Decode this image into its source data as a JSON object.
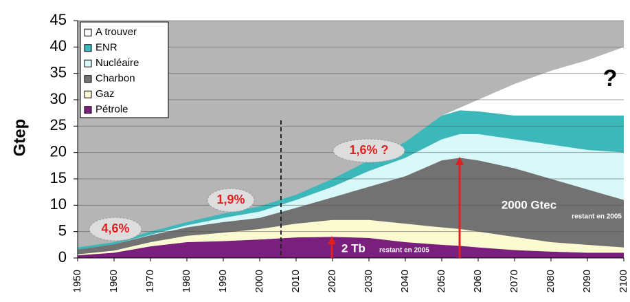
{
  "chart_data": {
    "type": "stacked_area",
    "y_label": "Gtep",
    "x": [
      1950,
      1960,
      1970,
      1980,
      1990,
      2000,
      2010,
      2020,
      2030,
      2040,
      2050,
      2055,
      2060,
      2070,
      2080,
      2090,
      2100
    ],
    "series": [
      {
        "name": "Pétrole",
        "color": "#7b1f7d",
        "values": [
          0.5,
          1.0,
          2.2,
          3.0,
          3.2,
          3.5,
          3.9,
          4.0,
          3.8,
          3.0,
          2.5,
          2.3,
          2.0,
          1.5,
          1.2,
          1.0,
          1.0
        ]
      },
      {
        "name": "Gaz",
        "color": "#fcfad0",
        "values": [
          0.2,
          0.4,
          0.8,
          1.2,
          1.6,
          2.0,
          2.6,
          3.2,
          3.4,
          3.5,
          3.3,
          3.2,
          3.0,
          2.5,
          1.8,
          1.5,
          1.0
        ]
      },
      {
        "name": "Charbon",
        "color": "#727272",
        "values": [
          0.9,
          1.2,
          1.3,
          1.6,
          2.0,
          2.1,
          3.0,
          4.3,
          6.3,
          9.0,
          12.7,
          13.5,
          13.5,
          13.0,
          12.0,
          10.5,
          9.0
        ]
      },
      {
        "name": "Nucléaire",
        "color": "#d8f8fa",
        "values": [
          0,
          0,
          0.1,
          0.4,
          0.8,
          1.2,
          1.5,
          2.0,
          3.0,
          3.5,
          4.0,
          4.5,
          5.0,
          5.5,
          6.5,
          7.5,
          9.0
        ]
      },
      {
        "name": "ENR",
        "color": "#3cb8ba",
        "values": [
          0.4,
          0.4,
          0.6,
          0.6,
          0.8,
          1.0,
          1.0,
          1.5,
          2.0,
          3.0,
          4.5,
          4.5,
          4.3,
          4.5,
          5.5,
          6.5,
          7.0
        ]
      },
      {
        "name": "A trouver",
        "color": "#ffffff",
        "values": [
          0,
          0,
          0,
          0,
          0,
          0,
          0,
          0,
          0,
          0,
          0,
          0.5,
          2.2,
          6.0,
          8.5,
          10.5,
          13.0
        ]
      }
    ],
    "xlim": [
      1950,
      2100
    ],
    "xticks": [
      1950,
      1960,
      1970,
      1980,
      1990,
      2000,
      2010,
      2020,
      2030,
      2040,
      2050,
      2060,
      2070,
      2080,
      2090,
      2100
    ],
    "ylim": [
      0,
      45
    ],
    "yticks": [
      0,
      5,
      10,
      15,
      20,
      25,
      30,
      35,
      40,
      45
    ],
    "grid": true,
    "legend": "upper left",
    "annotations": [
      "4,6%",
      "1,9%",
      "1,6% ?",
      "?",
      "2000 Gtec",
      "restant en 2005",
      "2 Tb",
      "restant en 2005"
    ]
  }
}
